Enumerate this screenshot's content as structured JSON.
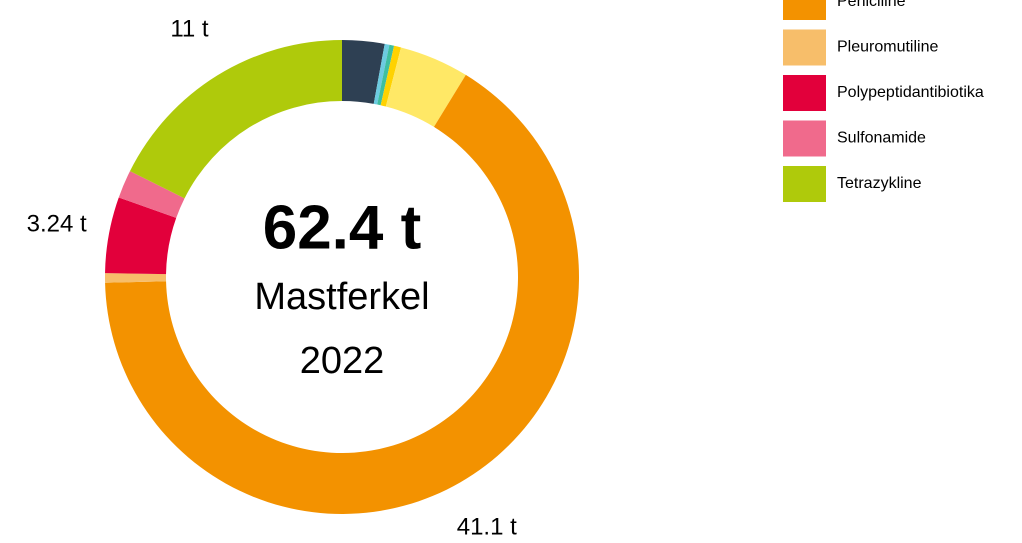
{
  "chart_data": {
    "type": "donut",
    "center_label": "62.4 t",
    "center_sublabel": "Mastferkel",
    "center_year": "2022",
    "categories": [
      null,
      null,
      null,
      null,
      null,
      "Peniciline",
      "Pleuromutiline",
      "Polypeptidantibiotika",
      "Sulfonamide",
      "Tetrazykline"
    ],
    "values": [
      1.8,
      0.2,
      0.2,
      0.3,
      2.96,
      41.1,
      0.4,
      3.24,
      1.2,
      11
    ],
    "value_labels": [
      null,
      null,
      null,
      null,
      null,
      "41.1 t",
      null,
      "3.24 t",
      null,
      "11 t"
    ],
    "colors": [
      "#2e4053",
      "#6ccbe0",
      "#3fbfa0",
      "#ffd200",
      "#ffe866",
      "#f39200",
      "#f7be6a",
      "#e2003b",
      "#f06a8c",
      "#afca0b"
    ],
    "legend": "top-right"
  }
}
